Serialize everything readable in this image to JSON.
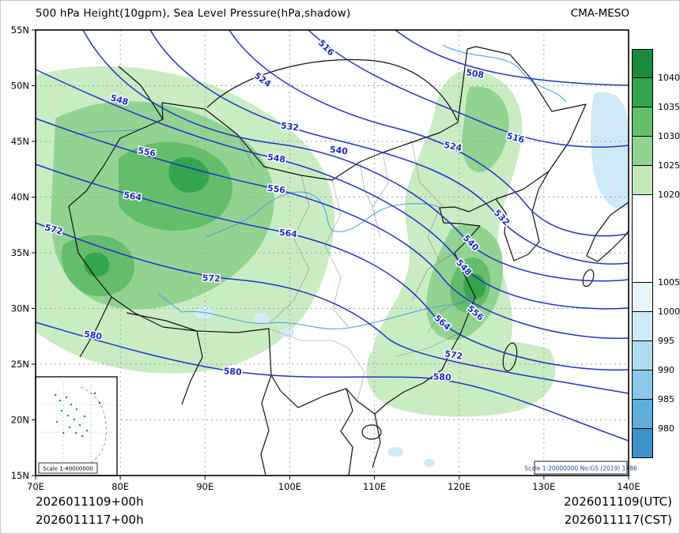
{
  "header": {
    "title": "500 hPa Height(10gpm), Sea Level Pressure(hPa,shadow)",
    "model": "CMA-MESO"
  },
  "axes": {
    "x_ticks": [
      "70E",
      "80E",
      "90E",
      "100E",
      "110E",
      "120E",
      "130E",
      "140E"
    ],
    "y_ticks": [
      "55N",
      "50N",
      "45N",
      "40N",
      "35N",
      "30N",
      "25N",
      "20N",
      "15N"
    ]
  },
  "colorbar": {
    "unit_labels": [
      "1040",
      "1035",
      "1030",
      "1025",
      "1020",
      "1005",
      "1000",
      "995",
      "990",
      "985",
      "980"
    ],
    "colors": [
      "#1c8a3a",
      "#35a44e",
      "#63bd6b",
      "#93d392",
      "#c2e8ba",
      "#ffffff",
      "#e9f5fb",
      "#cfe9f6",
      "#b0dbf0",
      "#8ac7e8",
      "#5fadda",
      "#3d93c9"
    ],
    "spans": [
      1,
      1,
      1,
      1,
      1,
      3,
      1,
      1,
      1,
      1,
      1,
      1
    ]
  },
  "map": {
    "contour_interval": "8",
    "contour_values": [
      "508",
      "516",
      "524",
      "532",
      "540",
      "548",
      "556",
      "564",
      "572",
      "580"
    ],
    "contour_labels": [
      {
        "text": "548"
      },
      {
        "text": "524"
      },
      {
        "text": "516"
      },
      {
        "text": "508"
      },
      {
        "text": "556"
      },
      {
        "text": "532"
      },
      {
        "text": "540"
      },
      {
        "text": "564"
      },
      {
        "text": "572"
      },
      {
        "text": "548"
      },
      {
        "text": "556"
      },
      {
        "text": "564"
      },
      {
        "text": "572"
      },
      {
        "text": "580"
      },
      {
        "text": "580"
      },
      {
        "text": "516"
      },
      {
        "text": "524"
      },
      {
        "text": "532"
      },
      {
        "text": "540"
      },
      {
        "text": "548"
      },
      {
        "text": "556"
      },
      {
        "text": "564"
      },
      {
        "text": "572"
      },
      {
        "text": "580"
      }
    ],
    "scale_main": "Scale 1:20000000 No:GS (2019) 1786",
    "scale_inset": "Scale 1:40000000"
  },
  "footer": {
    "init_utc": "2026011109+00h",
    "init_cst": "2026011117+00h",
    "valid_utc": "2026011109(UTC)",
    "valid_cst": "2026011117(CST)"
  }
}
